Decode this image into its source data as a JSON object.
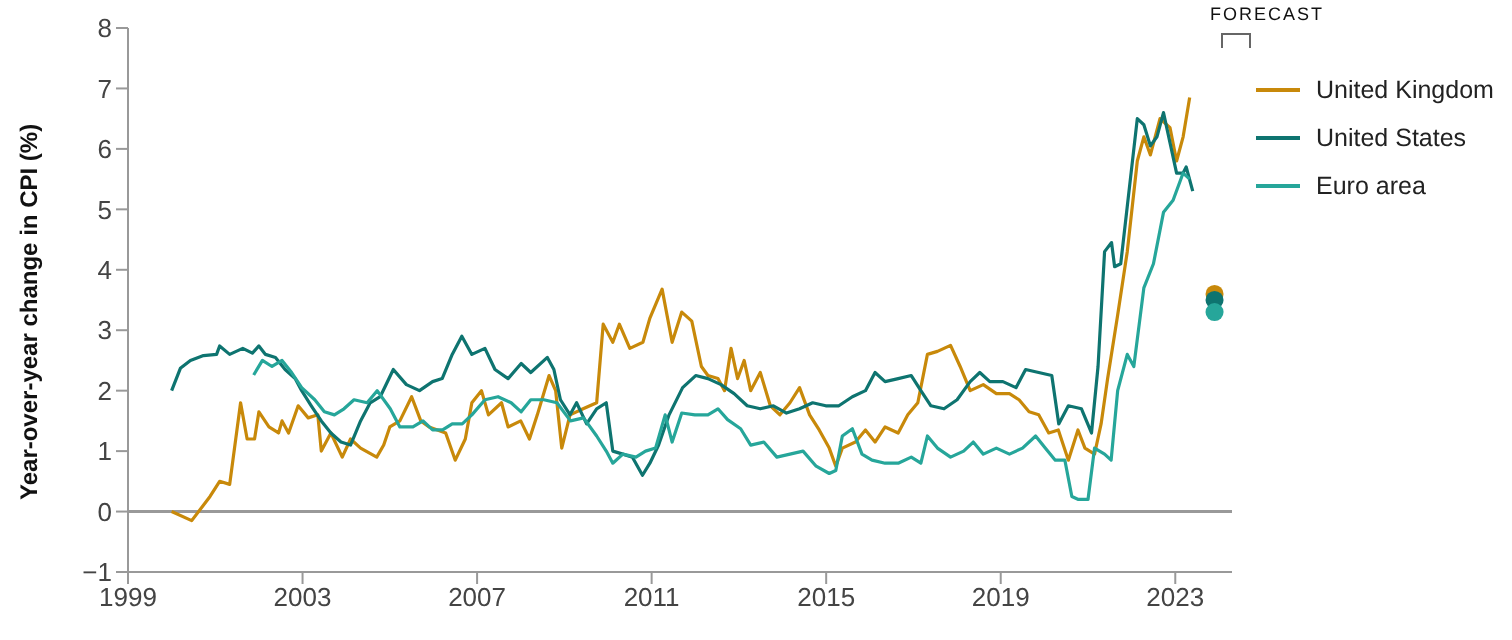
{
  "chart_data": {
    "type": "line",
    "ylabel": "Year-over-year change in CPI (%)",
    "annotations": [
      "FORECAST"
    ],
    "xlim": [
      1999,
      2024.3
    ],
    "xticks": [
      1999,
      2003,
      2007,
      2011,
      2015,
      2019,
      2023
    ],
    "ylim": [
      -1,
      8
    ],
    "yticks": [
      -1,
      0,
      1,
      2,
      3,
      4,
      5,
      6,
      7,
      8
    ],
    "grid": false,
    "legend": "top right",
    "marker": "none",
    "line_style": "solid",
    "ref_lines": [
      {
        "axis": "y",
        "value": 0,
        "color": "#999999"
      }
    ],
    "series": [
      {
        "name": "United Kingdom",
        "color": "#c8890a",
        "x": [
          2000.0,
          2000.46,
          2000.88,
          2001.1,
          2001.33,
          2001.58,
          2001.73,
          2001.9,
          2002.0,
          2002.23,
          2002.45,
          2002.53,
          2002.68,
          2002.9,
          2003.13,
          2003.35,
          2003.43,
          2003.65,
          2003.91,
          2004.1,
          2004.33,
          2004.7,
          2004.86,
          2005.0,
          2005.23,
          2005.5,
          2005.71,
          2005.9,
          2006.28,
          2006.5,
          2006.73,
          2006.88,
          2007.1,
          2007.26,
          2007.56,
          2007.71,
          2008.0,
          2008.2,
          2008.38,
          2008.65,
          2008.8,
          2008.94,
          2009.13,
          2009.43,
          2009.74,
          2009.89,
          2010.11,
          2010.26,
          2010.5,
          2010.8,
          2010.96,
          2011.24,
          2011.47,
          2011.69,
          2011.92,
          2012.14,
          2012.29,
          2012.52,
          2012.67,
          2012.82,
          2012.97,
          2013.12,
          2013.27,
          2013.49,
          2013.72,
          2013.94,
          2014.17,
          2014.39,
          2014.62,
          2014.84,
          2015.07,
          2015.22,
          2015.37,
          2015.67,
          2015.9,
          2016.12,
          2016.35,
          2016.65,
          2016.87,
          2017.1,
          2017.32,
          2017.55,
          2017.85,
          2018.07,
          2018.3,
          2018.6,
          2018.9,
          2019.2,
          2019.42,
          2019.65,
          2019.87,
          2020.1,
          2020.32,
          2020.55,
          2020.77,
          2020.93,
          2021.15,
          2021.3,
          2021.45,
          2021.68,
          2021.9,
          2022.13,
          2022.28,
          2022.43,
          2022.65,
          2022.88,
          2023.03,
          2023.18,
          2023.33
        ],
        "values": [
          0,
          -0.15,
          0.25,
          0.5,
          0.45,
          1.8,
          1.2,
          1.2,
          1.65,
          1.4,
          1.3,
          1.5,
          1.3,
          1.75,
          1.55,
          1.6,
          1.0,
          1.3,
          0.9,
          1.2,
          1.05,
          0.9,
          1.1,
          1.4,
          1.5,
          1.9,
          1.5,
          1.4,
          1.3,
          0.85,
          1.2,
          1.8,
          2.0,
          1.6,
          1.8,
          1.4,
          1.5,
          1.2,
          1.6,
          2.25,
          2.0,
          1.05,
          1.6,
          1.7,
          1.8,
          3.1,
          2.8,
          3.1,
          2.7,
          2.8,
          3.2,
          3.68,
          2.8,
          3.3,
          3.15,
          2.4,
          2.25,
          2.2,
          2.0,
          2.7,
          2.2,
          2.5,
          2.0,
          2.3,
          1.75,
          1.6,
          1.8,
          2.05,
          1.6,
          1.35,
          1.05,
          0.75,
          1.05,
          1.15,
          1.35,
          1.15,
          1.4,
          1.3,
          1.6,
          1.8,
          2.6,
          2.65,
          2.75,
          2.4,
          2.0,
          2.1,
          1.95,
          1.95,
          1.85,
          1.65,
          1.6,
          1.3,
          1.35,
          0.85,
          1.35,
          1.05,
          0.95,
          1.45,
          2.2,
          3.25,
          4.3,
          5.8,
          6.2,
          5.9,
          6.5,
          6.35,
          5.8,
          6.2,
          6.85
        ]
      },
      {
        "name": "United States",
        "color": "#0e7470",
        "x": [
          2000.0,
          2000.2,
          2000.43,
          2000.73,
          2001.03,
          2001.1,
          2001.33,
          2001.63,
          2001.85,
          2002.0,
          2002.15,
          2002.38,
          2002.6,
          2002.83,
          2002.98,
          2003.2,
          2003.43,
          2003.65,
          2003.88,
          2004.1,
          2004.33,
          2004.55,
          2004.78,
          2005.08,
          2005.38,
          2005.68,
          2005.98,
          2006.2,
          2006.43,
          2006.65,
          2006.88,
          2007.18,
          2007.41,
          2007.71,
          2008.01,
          2008.23,
          2008.61,
          2008.76,
          2008.91,
          2009.13,
          2009.28,
          2009.51,
          2009.74,
          2009.96,
          2010.11,
          2010.34,
          2010.56,
          2010.79,
          2010.96,
          2011.16,
          2011.4,
          2011.71,
          2012.01,
          2012.29,
          2012.59,
          2012.89,
          2013.19,
          2013.49,
          2013.79,
          2014.09,
          2014.39,
          2014.69,
          2014.99,
          2015.29,
          2015.6,
          2015.9,
          2016.12,
          2016.35,
          2016.65,
          2016.95,
          2017.17,
          2017.4,
          2017.7,
          2018.0,
          2018.3,
          2018.52,
          2018.75,
          2019.05,
          2019.35,
          2019.57,
          2019.87,
          2020.17,
          2020.33,
          2020.55,
          2020.85,
          2021.08,
          2021.23,
          2021.38,
          2021.54,
          2021.61,
          2021.75,
          2021.9,
          2022.13,
          2022.28,
          2022.43,
          2022.58,
          2022.73,
          2022.88,
          2023.03,
          2023.18,
          2023.25,
          2023.4
        ],
        "values": [
          2.0,
          2.37,
          2.5,
          2.58,
          2.6,
          2.74,
          2.6,
          2.7,
          2.62,
          2.74,
          2.6,
          2.55,
          2.35,
          2.2,
          2.0,
          1.75,
          1.5,
          1.3,
          1.15,
          1.1,
          1.5,
          1.8,
          1.9,
          2.35,
          2.1,
          2.0,
          2.15,
          2.2,
          2.6,
          2.9,
          2.6,
          2.7,
          2.35,
          2.2,
          2.45,
          2.3,
          2.55,
          2.35,
          1.85,
          1.6,
          1.8,
          1.45,
          1.7,
          1.8,
          1.0,
          0.95,
          0.9,
          0.6,
          0.8,
          1.1,
          1.6,
          2.05,
          2.25,
          2.2,
          2.1,
          1.95,
          1.75,
          1.7,
          1.75,
          1.63,
          1.7,
          1.8,
          1.75,
          1.75,
          1.9,
          2.0,
          2.3,
          2.15,
          2.2,
          2.25,
          2.0,
          1.75,
          1.7,
          1.85,
          2.15,
          2.3,
          2.15,
          2.15,
          2.05,
          2.35,
          2.3,
          2.25,
          1.45,
          1.75,
          1.7,
          1.3,
          2.4,
          4.3,
          4.45,
          4.05,
          4.1,
          5.05,
          6.5,
          6.4,
          6.05,
          6.2,
          6.6,
          6.1,
          5.6,
          5.6,
          5.7,
          5.3
        ]
      },
      {
        "name": "Euro area",
        "color": "#26a69a",
        "x": [
          2001.88,
          2002.08,
          2002.3,
          2002.53,
          2002.75,
          2002.98,
          2003.28,
          2003.5,
          2003.73,
          2003.95,
          2004.18,
          2004.48,
          2004.71,
          2005.01,
          2005.23,
          2005.53,
          2005.76,
          2005.98,
          2006.21,
          2006.43,
          2006.66,
          2006.88,
          2007.18,
          2007.48,
          2007.78,
          2008.01,
          2008.23,
          2008.53,
          2008.83,
          2009.14,
          2009.44,
          2009.74,
          2009.96,
          2010.11,
          2010.34,
          2010.64,
          2010.86,
          2011.09,
          2011.31,
          2011.47,
          2011.69,
          2011.99,
          2012.29,
          2012.52,
          2012.74,
          2013.04,
          2013.27,
          2013.57,
          2013.87,
          2014.17,
          2014.47,
          2014.77,
          2015.07,
          2015.22,
          2015.37,
          2015.6,
          2015.82,
          2016.05,
          2016.35,
          2016.65,
          2016.95,
          2017.17,
          2017.32,
          2017.55,
          2017.85,
          2018.15,
          2018.37,
          2018.6,
          2018.9,
          2019.2,
          2019.5,
          2019.8,
          2020.02,
          2020.25,
          2020.47,
          2020.63,
          2020.78,
          2021.0,
          2021.15,
          2021.38,
          2021.53,
          2021.68,
          2021.9,
          2022.05,
          2022.28,
          2022.5,
          2022.73,
          2022.95,
          2023.18,
          2023.33
        ],
        "values": [
          2.26,
          2.5,
          2.4,
          2.5,
          2.3,
          2.05,
          1.85,
          1.65,
          1.6,
          1.7,
          1.85,
          1.8,
          2.0,
          1.7,
          1.4,
          1.4,
          1.5,
          1.35,
          1.35,
          1.45,
          1.45,
          1.6,
          1.85,
          1.9,
          1.8,
          1.65,
          1.85,
          1.85,
          1.8,
          1.5,
          1.55,
          1.25,
          1.0,
          0.8,
          0.95,
          0.9,
          1.0,
          1.05,
          1.6,
          1.15,
          1.63,
          1.6,
          1.6,
          1.7,
          1.52,
          1.37,
          1.1,
          1.15,
          0.9,
          0.95,
          1.0,
          0.75,
          0.63,
          0.68,
          1.25,
          1.37,
          0.95,
          0.85,
          0.8,
          0.8,
          0.9,
          0.8,
          1.25,
          1.05,
          0.9,
          1.0,
          1.15,
          0.95,
          1.05,
          0.95,
          1.05,
          1.25,
          1.05,
          0.85,
          0.85,
          0.25,
          0.2,
          0.2,
          1.05,
          0.95,
          0.85,
          2.0,
          2.6,
          2.4,
          3.7,
          4.1,
          4.95,
          5.15,
          5.6,
          5.5
        ]
      },
      {
        "type": "scatter",
        "marker": "circle",
        "color": "#c8890a",
        "x": [
          2023.9
        ],
        "values": [
          3.6
        ]
      },
      {
        "type": "scatter",
        "marker": "circle",
        "color": "#0e7470",
        "x": [
          2023.9
        ],
        "values": [
          3.5
        ]
      },
      {
        "type": "scatter",
        "marker": "circle",
        "color": "#26a69a",
        "x": [
          2023.9
        ],
        "values": [
          3.3
        ]
      }
    ]
  }
}
